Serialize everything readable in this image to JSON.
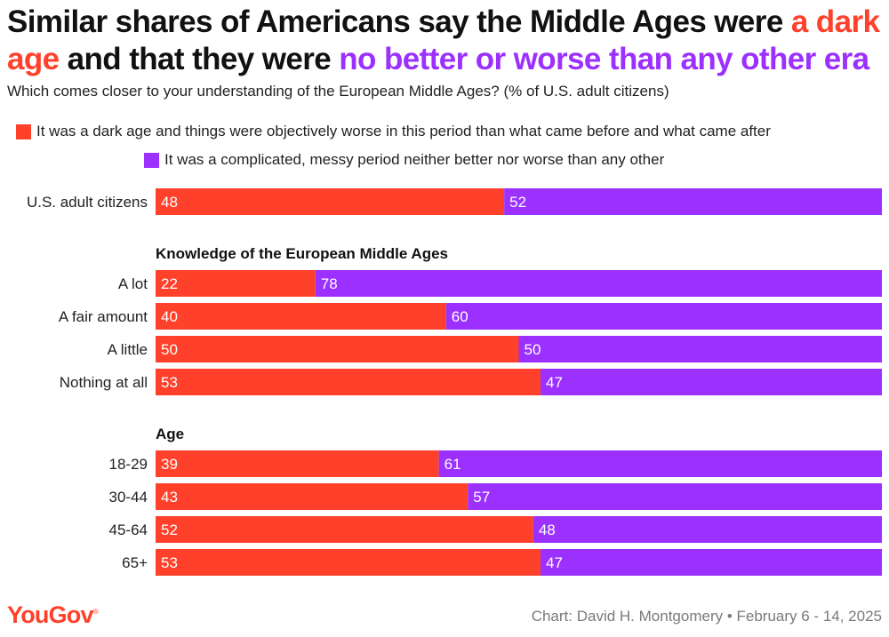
{
  "title": {
    "part1": "Similar shares of Americans say the Middle Ages were ",
    "highlight1": "a dark age",
    "part2": " and that they were ",
    "highlight2": "no better or worse than any other era"
  },
  "subtitle": "Which comes closer to your understanding of the European Middle Ages? (% of U.S. adult citizens)",
  "colors": {
    "dark_age": "#ff412c",
    "neutral": "#9b30ff",
    "bar_label": "#ffffff"
  },
  "legend": {
    "dark_age": "It was a dark age and things were objectively worse in this period than what came before and what came after",
    "neutral": "It was a complicated, messy period neither better nor worse than any other"
  },
  "chart_data": {
    "type": "bar",
    "orientation": "horizontal",
    "stacked": true,
    "percent": true,
    "xlim": [
      0,
      100
    ],
    "series": [
      {
        "name": "It was a dark age and things were objectively worse in this period than what came before and what came after",
        "key": "dark_age"
      },
      {
        "name": "It was a complicated, messy period neither better nor worse than any other",
        "key": "neutral"
      }
    ],
    "groups": [
      {
        "heading": "",
        "rows": [
          {
            "label": "U.S. adult citizens",
            "dark_age": 48,
            "neutral": 52
          }
        ]
      },
      {
        "heading": "Knowledge of the European Middle Ages",
        "rows": [
          {
            "label": "A lot",
            "dark_age": 22,
            "neutral": 78
          },
          {
            "label": "A fair amount",
            "dark_age": 40,
            "neutral": 60
          },
          {
            "label": "A little",
            "dark_age": 50,
            "neutral": 50
          },
          {
            "label": "Nothing at all",
            "dark_age": 53,
            "neutral": 47
          }
        ]
      },
      {
        "heading": "Age",
        "rows": [
          {
            "label": "18-29",
            "dark_age": 39,
            "neutral": 61
          },
          {
            "label": "30-44",
            "dark_age": 43,
            "neutral": 57
          },
          {
            "label": "45-64",
            "dark_age": 52,
            "neutral": 48
          },
          {
            "label": "65+",
            "dark_age": 53,
            "neutral": 47
          }
        ]
      }
    ]
  },
  "footer": {
    "brand": "YouGov",
    "brand_mark": "®",
    "credit": "Chart: David H. Montgomery • February 6 - 14, 2025"
  }
}
